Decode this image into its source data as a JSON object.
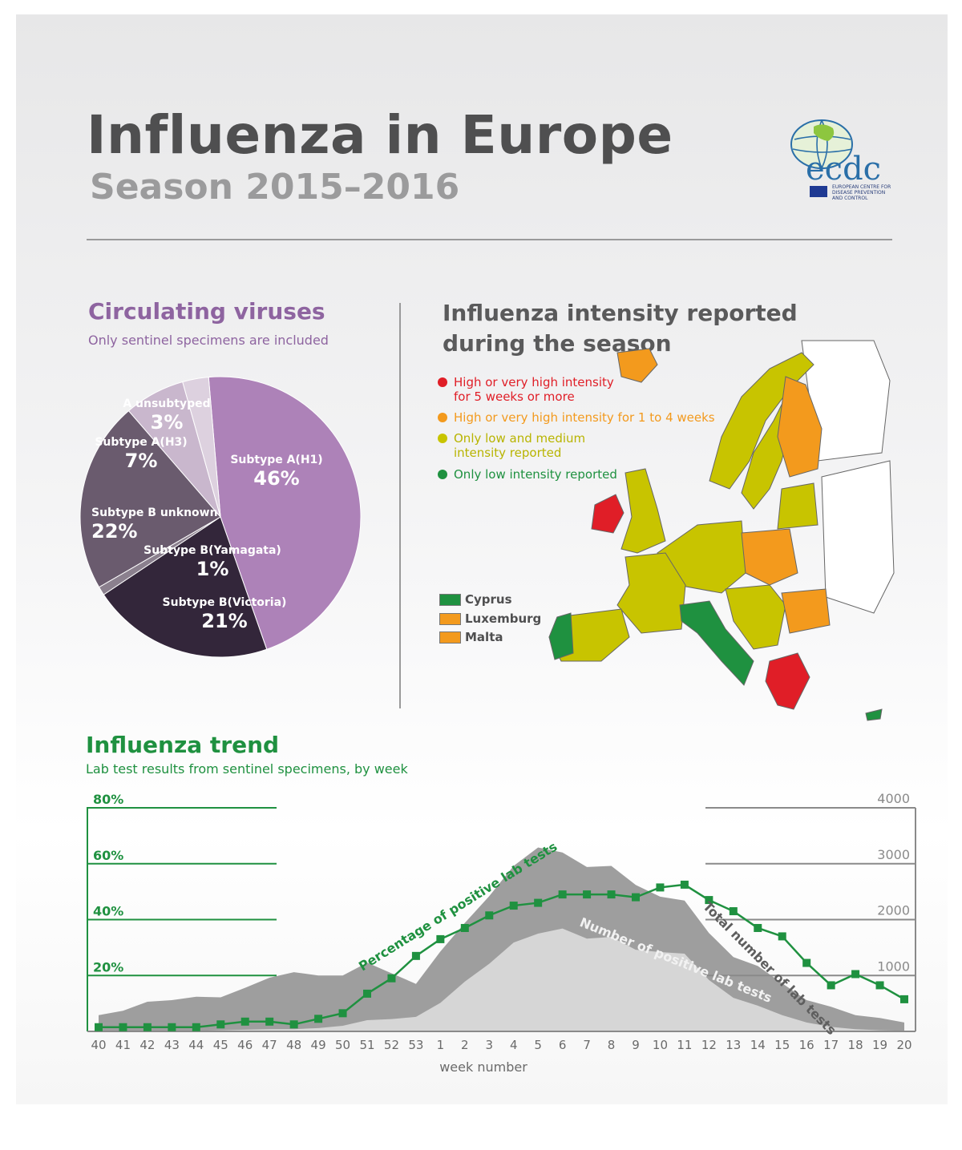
{
  "header": {
    "title": "Influenza in Europe",
    "subtitle": "Season 2015–2016",
    "logo_text": "ecdc",
    "logo_subtext": "EUROPEAN CENTRE FOR DISEASE PREVENTION AND CONTROL"
  },
  "viruses": {
    "title": "Circulating viruses",
    "subtitle": "Only sentinel specimens are included",
    "slices": [
      {
        "label": "Subtype A(H1)",
        "value": 46,
        "display": "46%",
        "color": "#ad82b8"
      },
      {
        "label": "Subtype B(Victoria)",
        "value": 21,
        "display": "21%",
        "color": "#33263a"
      },
      {
        "label": "Subtype B(Yamagata)",
        "value": 1,
        "display": "1%",
        "color": "#8b808e"
      },
      {
        "label": "Subtype B unknown",
        "value": 22,
        "display": "22%",
        "color": "#6a5b6e"
      },
      {
        "label": "Subtype A(H3)",
        "value": 7,
        "display": "7%",
        "color": "#c9b7cd"
      },
      {
        "label": "A unsubtyped",
        "value": 3,
        "display": "3%",
        "color": "#ddd1df"
      }
    ]
  },
  "map": {
    "title": "Influenza intensity reported during the season",
    "legend": [
      {
        "line1": "High or very high intensity",
        "line2": "for 5 weeks or more",
        "color": "#e01e27"
      },
      {
        "line1": "High or very high intensity for 1 to 4 weeks",
        "line2": "",
        "color": "#f39a1d"
      },
      {
        "line1": "Only low and medium",
        "line2": "intensity reported",
        "color": "#c8c400"
      },
      {
        "line1": "Only low intensity reported",
        "line2": "",
        "color": "#1f9140"
      }
    ],
    "small_countries": [
      {
        "name": "Cyprus",
        "color": "#1f9140"
      },
      {
        "name": "Luxemburg",
        "color": "#f39a1d"
      },
      {
        "name": "Malta",
        "color": "#f39a1d"
      }
    ]
  },
  "trend": {
    "title": "Influenza trend",
    "subtitle": "Lab test results from sentinel specimens, by week",
    "series_labels": {
      "percentage": "Percentage of positive lab tests",
      "positive": "Number of positive lab tests",
      "total": "Total number of lab tests"
    }
  },
  "chart_data": [
    {
      "type": "pie",
      "title": "Circulating viruses",
      "subtitle": "Only sentinel specimens are included",
      "labels": [
        "Subtype A(H1)",
        "Subtype B(Victoria)",
        "Subtype B(Yamagata)",
        "Subtype B unknown",
        "Subtype A(H3)",
        "A unsubtyped"
      ],
      "values": [
        46,
        21,
        1,
        22,
        7,
        3
      ]
    },
    {
      "type": "area",
      "title": "Influenza trend",
      "subtitle": "Lab test results from sentinel specimens, by week",
      "xlabel": "week number",
      "x": [
        "40",
        "41",
        "42",
        "43",
        "44",
        "45",
        "46",
        "47",
        "48",
        "49",
        "50",
        "51",
        "52",
        "53",
        "1",
        "2",
        "3",
        "4",
        "5",
        "6",
        "7",
        "8",
        "9",
        "10",
        "11",
        "12",
        "13",
        "14",
        "15",
        "16",
        "17",
        "18",
        "19",
        "20"
      ],
      "y_left_ticks": [
        "20%",
        "40%",
        "60%",
        "80%"
      ],
      "y_left_lim": [
        0,
        80
      ],
      "y_right_ticks": [
        "1000",
        "2000",
        "3000",
        "4000"
      ],
      "y_right_lim": [
        0,
        4000
      ],
      "series": [
        {
          "name": "Total number of lab tests",
          "axis": "right",
          "color": "#9e9e9e",
          "values": [
            290,
            370,
            530,
            560,
            620,
            610,
            780,
            960,
            1060,
            1000,
            1000,
            1230,
            1040,
            850,
            1430,
            1940,
            2420,
            2960,
            3290,
            3200,
            2940,
            2960,
            2620,
            2410,
            2340,
            1760,
            1330,
            1170,
            860,
            560,
            440,
            290,
            240,
            160
          ]
        },
        {
          "name": "Number of positive lab tests",
          "axis": "right",
          "color": "#d6d6d6",
          "values": [
            5,
            5,
            5,
            5,
            10,
            20,
            30,
            40,
            40,
            60,
            100,
            200,
            220,
            260,
            510,
            890,
            1210,
            1590,
            1750,
            1840,
            1660,
            1690,
            1460,
            1420,
            1390,
            920,
            600,
            460,
            290,
            160,
            80,
            40,
            20,
            10
          ]
        },
        {
          "name": "Percentage of positive lab tests",
          "axis": "left",
          "color": "#1f9140",
          "values": [
            1.5,
            1.5,
            1.5,
            1.5,
            1.5,
            2.5,
            3.5,
            3.5,
            2.5,
            4.5,
            6.5,
            13.5,
            19,
            27,
            33,
            37,
            41.5,
            45,
            46,
            49,
            49,
            49,
            48,
            51.5,
            52.5,
            47,
            43,
            37,
            34,
            24.5,
            16.5,
            20.5,
            16.5,
            11.5
          ]
        }
      ]
    }
  ]
}
